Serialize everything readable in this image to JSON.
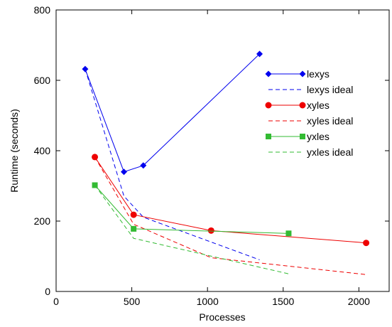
{
  "chart_data": {
    "type": "line",
    "title": "",
    "xlabel": "Processes",
    "ylabel": "Runtime (seconds)",
    "xlim": [
      0,
      2200
    ],
    "ylim": [
      0,
      800
    ],
    "xticks": [
      0,
      500,
      1000,
      1500,
      2000
    ],
    "yticks": [
      0,
      200,
      400,
      600,
      800
    ],
    "grid": false,
    "legend_position": "top-right",
    "series": [
      {
        "name": "lexys",
        "style": "solid",
        "marker": "diamond",
        "color": "#0000ee",
        "x": [
          192,
          448,
          576,
          1344
        ],
        "y": [
          632,
          340,
          358,
          675
        ]
      },
      {
        "name": "lexys ideal",
        "style": "dashed",
        "marker": "none",
        "color": "#0000ee",
        "x": [
          192,
          448,
          576,
          1344
        ],
        "y": [
          632,
          271,
          211,
          90
        ]
      },
      {
        "name": "xyles",
        "style": "solid",
        "marker": "circle",
        "color": "#ee0000",
        "x": [
          256,
          512,
          1024,
          2048
        ],
        "y": [
          382,
          218,
          173,
          138
        ]
      },
      {
        "name": "xyles ideal",
        "style": "dashed",
        "marker": "none",
        "color": "#ee0000",
        "x": [
          256,
          512,
          1024,
          2048
        ],
        "y": [
          382,
          191,
          96,
          48
        ]
      },
      {
        "name": "yxles",
        "style": "solid",
        "marker": "square",
        "color": "#33bb33",
        "x": [
          256,
          512,
          1536
        ],
        "y": [
          302,
          178,
          165
        ]
      },
      {
        "name": "yxles ideal",
        "style": "dashed",
        "marker": "none",
        "color": "#33bb33",
        "x": [
          256,
          512,
          1536
        ],
        "y": [
          302,
          151,
          50
        ]
      }
    ]
  }
}
